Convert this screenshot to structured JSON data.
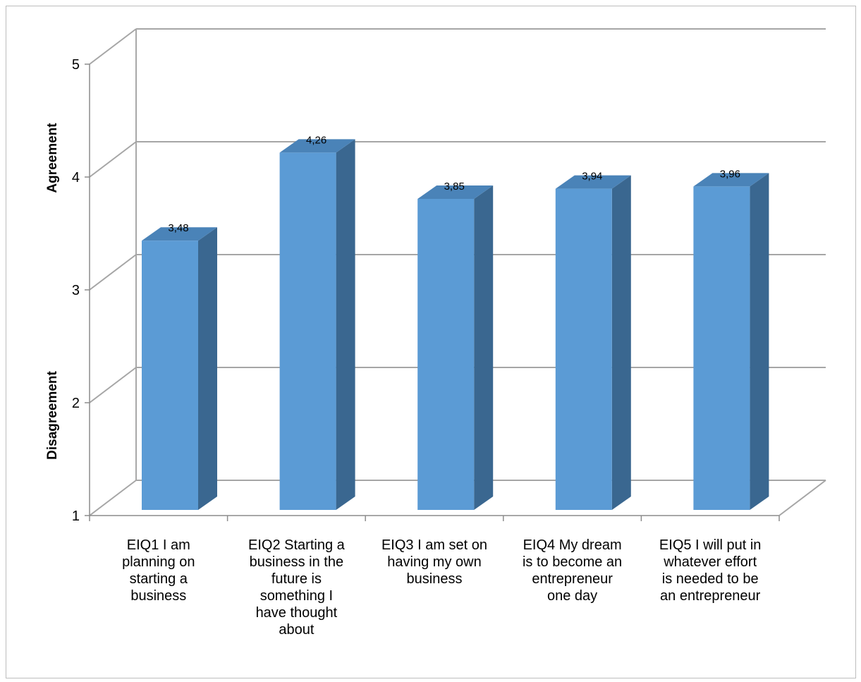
{
  "chart_data": {
    "type": "bar",
    "style": "3d-column",
    "categories": [
      "EIQ1 I am planning on starting a business",
      "EIQ2 Starting a business in the future is something I have thought about",
      "EIQ3 I am set on having my own business",
      "EIQ4 My dream is to become an entrepreneur one day",
      "EIQ5 I will put in whatever effort is needed to be an entrepreneur"
    ],
    "category_lines": [
      [
        "EIQ1 I am",
        "planning on",
        "starting a",
        "business"
      ],
      [
        "EIQ2 Starting a",
        "business in the",
        "future is",
        "something I",
        "have thought",
        "about"
      ],
      [
        "EIQ3 I am set on",
        "having my own",
        "business"
      ],
      [
        "EIQ4 My dream",
        "is to become an",
        "entrepreneur",
        "one day"
      ],
      [
        "EIQ5 I will put in",
        "whatever effort",
        "is needed to be",
        "an entrepreneur"
      ]
    ],
    "values": [
      3.48,
      4.26,
      3.85,
      3.94,
      3.96
    ],
    "value_labels": [
      "3,48",
      "4,26",
      "3,85",
      "3,94",
      "3,96"
    ],
    "ylim": [
      1,
      5
    ],
    "yticks": [
      1,
      2,
      3,
      4,
      5
    ],
    "y_axis_annotations": [
      "Agreement",
      "Disagreement"
    ],
    "title": "",
    "xlabel": "",
    "grid": true,
    "colors": {
      "bar_front": "#5b9bd5",
      "bar_side": "#3a6790",
      "bar_top": "#4a83b8",
      "grid": "#a6a6a6",
      "axis": "#8c8c8c"
    }
  }
}
